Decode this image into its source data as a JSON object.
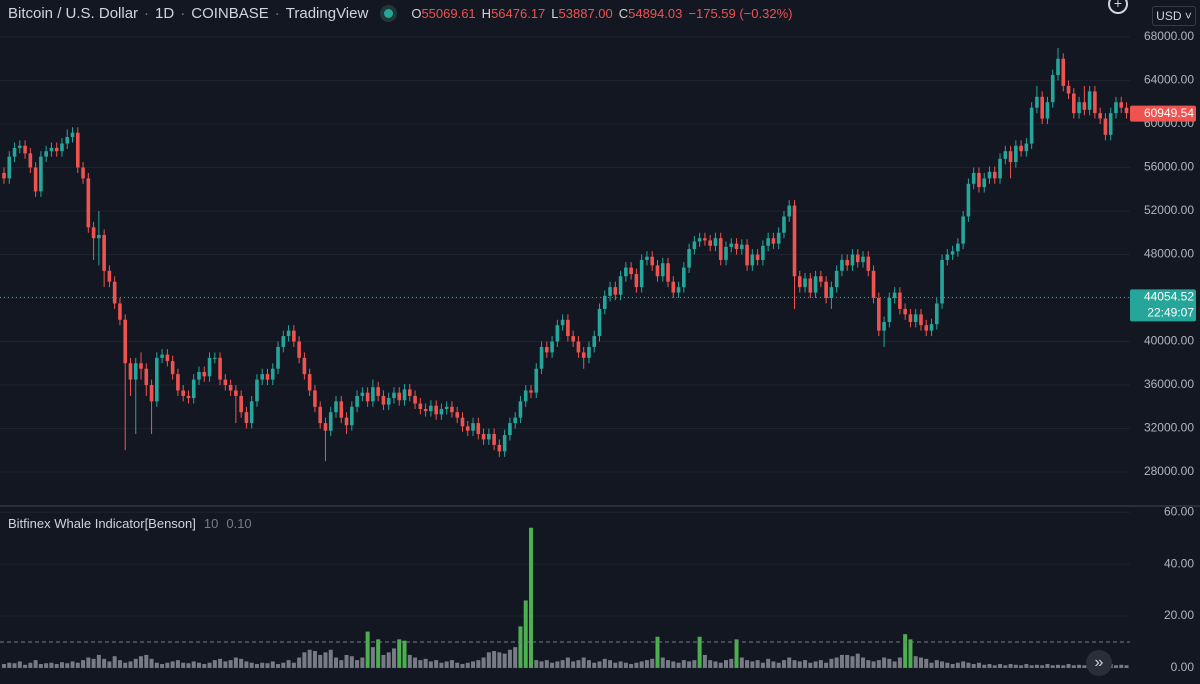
{
  "header": {
    "symbol": "Bitcoin / U.S. Dollar",
    "interval": "1D",
    "exchange": "COINBASE",
    "source": "TradingView",
    "open_key": "O",
    "open": 55069.61,
    "high_key": "H",
    "high": 56476.17,
    "low_key": "L",
    "low": {
      "value": 53887,
      "label": "53887.00"
    },
    "close_key": "C",
    "close": 54894.03,
    "change": "−175.59 (−0.32%)",
    "currency": "USD"
  },
  "chart_data": [
    {
      "type": "candlestick",
      "up_color": "#26a69a",
      "down_color": "#ef5350",
      "grid": true,
      "ylim": [
        24970,
        71400
      ],
      "yticks": [
        {
          "value": 28000,
          "label": "28000.00"
        },
        {
          "value": 32000,
          "label": "32000.00"
        },
        {
          "value": 36000,
          "label": "36000.00"
        },
        {
          "value": 40000,
          "label": "40000.00"
        },
        {
          "value": 44000,
          "label": "44000.00"
        },
        {
          "value": 48000,
          "label": "48000.00"
        },
        {
          "value": 52000,
          "label": "52000.00"
        },
        {
          "value": 56000,
          "label": "56000.00"
        },
        {
          "value": 60000,
          "label": "60000.00"
        },
        {
          "value": 64000,
          "label": "64000.00"
        },
        {
          "value": 68000,
          "label": "68000.00"
        }
      ],
      "current_price": 44054.52,
      "countdown": "22:49:07",
      "marked_price": 60949.54,
      "open": [
        55500,
        55000,
        57000,
        57800,
        58000,
        57300,
        56000,
        53800,
        57000,
        57500,
        57800,
        57500,
        58200,
        58800,
        59200,
        56000,
        55000,
        50500,
        49500,
        49800,
        46500,
        45500,
        43500,
        42000,
        38000,
        36500,
        38000,
        37500,
        36000,
        34500,
        38500,
        38800,
        38200,
        37000,
        35500,
        35000,
        34800,
        36500,
        37200,
        36800,
        38500,
        38500,
        36500,
        36000,
        35500,
        35000,
        33500,
        32500,
        34500,
        36500,
        37000,
        36500,
        37500,
        39500,
        40500,
        41000,
        40000,
        38500,
        37000,
        35500,
        34000,
        32500,
        31800,
        33500,
        34500,
        33000,
        32300,
        34000,
        35000,
        35300,
        34500,
        35800,
        35000,
        34200,
        34800,
        35300,
        34600,
        35600,
        35000,
        34300,
        33800,
        33600,
        34100,
        33300,
        33800,
        34000,
        33500,
        33000,
        32200,
        31800,
        32500,
        31500,
        31000,
        31500,
        30500,
        29900,
        31400,
        32500,
        33000,
        34500,
        35500,
        35300,
        37500,
        39500,
        39000,
        40000,
        41500,
        42000,
        40500,
        40000,
        39000,
        38500,
        39500,
        40500,
        43000,
        44200,
        45000,
        44300,
        46000,
        46800,
        46200,
        45000,
        47500,
        47800,
        47000,
        46000,
        47200,
        45500,
        44500,
        45000,
        46800,
        48500,
        49200,
        49500,
        49300,
        48800,
        49500,
        47500,
        48700,
        49000,
        48500,
        48900,
        47000,
        48000,
        47500,
        48800,
        49500,
        49000,
        50000,
        51500,
        52500,
        46000,
        45000,
        45800,
        44500,
        46000,
        45500,
        44000,
        45000,
        46500,
        47500,
        47000,
        48000,
        47300,
        47800,
        46500,
        44000,
        41000,
        41800,
        44000,
        44500,
        43000,
        42500,
        41800,
        42500,
        41500,
        41000,
        41600,
        43500,
        47500,
        48000,
        48300,
        49000,
        51500,
        54500,
        55500,
        54200,
        55000,
        55600,
        55000,
        56800,
        57500,
        56500,
        58000,
        57500,
        58200,
        61500,
        62500,
        60500,
        62000,
        64500,
        66000,
        63500,
        62800,
        61000,
        62000,
        61300,
        63000,
        61000,
        60500,
        59000,
        61000,
        62000,
        61500
      ],
      "high": [
        56000,
        57500,
        58300,
        58500,
        58500,
        57800,
        56500,
        57500,
        58000,
        58300,
        58300,
        58700,
        59500,
        59700,
        59700,
        56500,
        55500,
        51000,
        52000,
        50300,
        47000,
        46000,
        44000,
        42500,
        38500,
        38500,
        39000,
        38000,
        36500,
        39000,
        39300,
        39300,
        38700,
        37500,
        36000,
        35500,
        37000,
        37700,
        37700,
        39000,
        39000,
        39000,
        37000,
        36500,
        36000,
        35500,
        34000,
        35000,
        37000,
        37500,
        37500,
        38000,
        40000,
        41000,
        41500,
        41500,
        40500,
        39000,
        37500,
        36000,
        34500,
        33000,
        34000,
        35000,
        35000,
        33500,
        34500,
        35500,
        35800,
        35800,
        36500,
        36300,
        35500,
        35300,
        35800,
        35800,
        36100,
        36100,
        35500,
        34800,
        34300,
        34600,
        34600,
        34300,
        34500,
        34500,
        34000,
        33500,
        32700,
        33000,
        33000,
        32000,
        32000,
        32000,
        31000,
        31900,
        33000,
        33500,
        35000,
        36000,
        36000,
        38000,
        40000,
        40000,
        40500,
        42000,
        42500,
        42500,
        41000,
        40500,
        39500,
        40000,
        41000,
        43500,
        44700,
        45500,
        45500,
        46500,
        47300,
        47300,
        46700,
        48000,
        48300,
        48300,
        47500,
        47700,
        47700,
        46000,
        45500,
        47300,
        49000,
        49700,
        50000,
        50000,
        49800,
        50000,
        50000,
        49200,
        49500,
        49500,
        49400,
        49400,
        48500,
        48500,
        49300,
        50000,
        50000,
        50500,
        52000,
        53000,
        53000,
        46500,
        46300,
        46300,
        46500,
        46500,
        46000,
        45500,
        47000,
        48000,
        48000,
        48500,
        48500,
        48300,
        48300,
        47000,
        44500,
        42300,
        44500,
        45000,
        45000,
        43500,
        43000,
        43000,
        43000,
        42000,
        42100,
        44000,
        48000,
        48500,
        48800,
        49500,
        52000,
        55000,
        56000,
        56000,
        55500,
        56100,
        56100,
        57300,
        58000,
        58000,
        58500,
        58500,
        58700,
        62000,
        63500,
        63000,
        62500,
        65000,
        67000,
        66500,
        64000,
        63300,
        62500,
        63500,
        63500,
        63500,
        61500,
        61000,
        61500,
        62500,
        62500,
        62000
      ],
      "low": [
        54500,
        54500,
        56500,
        57300,
        56800,
        55500,
        53300,
        53300,
        56500,
        57000,
        57000,
        57000,
        57700,
        58300,
        55500,
        54500,
        50000,
        47500,
        47000,
        45000,
        45000,
        43000,
        41500,
        30000,
        35000,
        31500,
        36500,
        35000,
        31500,
        34000,
        38000,
        37700,
        36500,
        35000,
        34500,
        34300,
        34300,
        36000,
        36300,
        36300,
        38000,
        36000,
        35500,
        35000,
        32500,
        33000,
        32000,
        32000,
        34000,
        36000,
        36000,
        36000,
        37000,
        39000,
        40000,
        39500,
        38000,
        36500,
        35000,
        33500,
        32000,
        29000,
        31300,
        33000,
        32500,
        31500,
        31800,
        33500,
        34500,
        34000,
        34000,
        34500,
        33700,
        33700,
        34300,
        34100,
        34100,
        34500,
        33800,
        33300,
        33100,
        33100,
        32800,
        32800,
        33300,
        33000,
        32500,
        31700,
        31300,
        31300,
        31000,
        30500,
        30500,
        30000,
        29400,
        29400,
        30900,
        32000,
        32500,
        34000,
        34800,
        34800,
        37000,
        38500,
        38500,
        39500,
        41000,
        40000,
        39500,
        38500,
        37500,
        38000,
        39000,
        40000,
        42500,
        43700,
        43800,
        43800,
        45500,
        45700,
        44500,
        44500,
        47000,
        46500,
        45500,
        45500,
        45000,
        44000,
        44000,
        44500,
        46300,
        48000,
        48700,
        48800,
        48300,
        48300,
        47000,
        47000,
        48200,
        48000,
        48000,
        46500,
        46500,
        47000,
        47000,
        48300,
        48500,
        48500,
        49500,
        51000,
        43000,
        44500,
        44500,
        44000,
        44000,
        45000,
        43500,
        43000,
        44500,
        46000,
        46500,
        46500,
        46800,
        46800,
        46000,
        43500,
        40500,
        39500,
        41300,
        43500,
        42500,
        42000,
        41300,
        41300,
        41000,
        40500,
        40500,
        41100,
        43000,
        47000,
        47500,
        47800,
        48500,
        51000,
        54000,
        53700,
        53700,
        54500,
        54500,
        54500,
        56300,
        55000,
        56000,
        57000,
        57000,
        57700,
        61000,
        60000,
        60000,
        61500,
        64000,
        63000,
        62300,
        60500,
        60500,
        60800,
        60800,
        60500,
        60000,
        58500,
        58500,
        60500,
        61000,
        60500
      ],
      "close": [
        55000,
        57000,
        57800,
        58000,
        57300,
        56000,
        53800,
        57000,
        57500,
        57800,
        57500,
        58200,
        58800,
        59200,
        56000,
        55000,
        50500,
        49500,
        49800,
        46500,
        45500,
        43500,
        42000,
        38000,
        36500,
        38000,
        37500,
        36000,
        34500,
        38500,
        38800,
        38200,
        37000,
        35500,
        35000,
        34800,
        36500,
        37200,
        36800,
        38500,
        38500,
        36500,
        36000,
        35500,
        35000,
        33500,
        32500,
        34500,
        36500,
        37000,
        36500,
        37500,
        39500,
        40500,
        41000,
        40000,
        38500,
        37000,
        35500,
        34000,
        32500,
        31800,
        33500,
        34500,
        33000,
        32300,
        34000,
        35000,
        35300,
        34500,
        35800,
        35000,
        34200,
        34800,
        35300,
        34600,
        35600,
        35000,
        34300,
        33800,
        33600,
        34100,
        33300,
        33800,
        34000,
        33500,
        33000,
        32200,
        31800,
        32500,
        31500,
        31000,
        31500,
        30500,
        29900,
        31400,
        32500,
        33000,
        34500,
        35500,
        35300,
        37500,
        39500,
        39000,
        40000,
        41500,
        42000,
        40500,
        40000,
        39000,
        38500,
        39500,
        40500,
        43000,
        44200,
        45000,
        44300,
        46000,
        46800,
        46200,
        45000,
        47500,
        47800,
        47000,
        46000,
        47200,
        45500,
        44500,
        45000,
        46800,
        48500,
        49200,
        49500,
        49300,
        48800,
        49500,
        47500,
        48700,
        49000,
        48500,
        48900,
        47000,
        48000,
        47500,
        48800,
        49500,
        49000,
        50000,
        51500,
        52500,
        46000,
        45000,
        45800,
        44500,
        46000,
        45500,
        44000,
        45000,
        46500,
        47500,
        47000,
        48000,
        47300,
        47800,
        46500,
        44000,
        41000,
        41800,
        44000,
        44500,
        43000,
        42500,
        41800,
        42500,
        41500,
        41000,
        41600,
        43500,
        47500,
        48000,
        48300,
        49000,
        51500,
        54500,
        55500,
        54200,
        55000,
        55600,
        55000,
        56800,
        57500,
        56500,
        58000,
        57500,
        58200,
        61500,
        62500,
        60500,
        62000,
        64500,
        66000,
        63500,
        62800,
        61000,
        62000,
        61300,
        63000,
        61000,
        60500,
        59000,
        61000,
        62000,
        61500,
        61000
      ]
    },
    {
      "type": "bar",
      "title": "Bitfinex Whale Indicator[Benson]",
      "params": [
        10,
        {
          "value": 0.1,
          "label": "0.10"
        }
      ],
      "color": "#787b86",
      "highlight_color": "#4caf50",
      "threshold": 10,
      "ylim": [
        -6.2,
        62
      ],
      "yticks": [
        {
          "value": 0,
          "label": "0.00"
        },
        {
          "value": 20,
          "label": "20.00"
        },
        {
          "value": 40,
          "label": "40.00"
        },
        {
          "value": 60,
          "label": "60.00"
        }
      ],
      "values": [
        1.5,
        2,
        1.8,
        2.5,
        1.2,
        2,
        3,
        1.5,
        1.8,
        2,
        1.5,
        2.2,
        1.8,
        2.5,
        2,
        3,
        4,
        3.5,
        5,
        3.5,
        2.5,
        4.5,
        3,
        2,
        2.5,
        3.5,
        4.5,
        5,
        3.5,
        2,
        1.5,
        2,
        2.5,
        3,
        2,
        1.8,
        2.5,
        2,
        1.5,
        2,
        3,
        3.5,
        2.5,
        3,
        4,
        3.5,
        2.5,
        2,
        1.5,
        2,
        1.8,
        2.5,
        1.5,
        2,
        3,
        2,
        4,
        6,
        7,
        6.5,
        5,
        6,
        7,
        4,
        3,
        5,
        4.5,
        3,
        4,
        14,
        8,
        11,
        5,
        6,
        7.5,
        11,
        10.5,
        5,
        4,
        3,
        3.5,
        2.5,
        3,
        2,
        2.5,
        3,
        2,
        1.5,
        2,
        2.5,
        3,
        4,
        6,
        6.5,
        6,
        5.5,
        7,
        8,
        16,
        26,
        54,
        3,
        2.5,
        3,
        2,
        2.5,
        3,
        4,
        2.5,
        3,
        4,
        3,
        2,
        2.5,
        3.5,
        3,
        2,
        2.5,
        2,
        1.5,
        2,
        2.5,
        3,
        3.5,
        12,
        4,
        3,
        2.5,
        2,
        3,
        2.5,
        3,
        12,
        5,
        3,
        2.5,
        2,
        3,
        3.5,
        11,
        4,
        3,
        2.5,
        3,
        2,
        3.5,
        2.5,
        2,
        3,
        4,
        3,
        2.5,
        3,
        2,
        2.5,
        3,
        2,
        3.5,
        4,
        5,
        5,
        4.5,
        5.5,
        4,
        3,
        2.5,
        3,
        4,
        3.5,
        2.5,
        4,
        13,
        11,
        4.5,
        4,
        3.5,
        2,
        3,
        2.5,
        2,
        1.5,
        2,
        2.5,
        2,
        1.5,
        2,
        1.2,
        1.5,
        1,
        1.5,
        1,
        1.5,
        1.2,
        1,
        1.5,
        1,
        1.2,
        1,
        1.5,
        1,
        1.2,
        1,
        1.5,
        1,
        1.2,
        1,
        1.5,
        1,
        1.2,
        1,
        1.5,
        1,
        1.2,
        1
      ]
    }
  ]
}
